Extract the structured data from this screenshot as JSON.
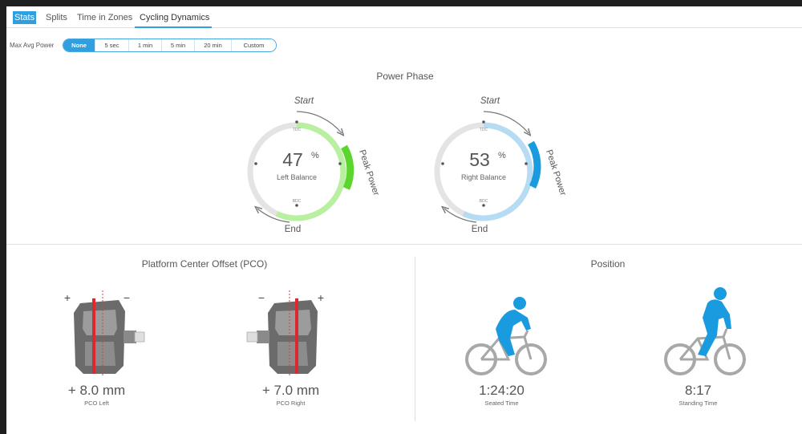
{
  "tabs": [
    {
      "label": "Stats"
    },
    {
      "label": "Splits"
    },
    {
      "label": "Time in Zones"
    },
    {
      "label": "Cycling Dynamics"
    }
  ],
  "max_avg_power": {
    "label": "Max Avg Power",
    "options": [
      "None",
      "5 sec",
      "1 min",
      "5 min",
      "20 min",
      "Custom"
    ],
    "selected": "None"
  },
  "power_phase": {
    "title": "Power Phase",
    "left": {
      "value": "47",
      "unit": "%",
      "label": "Left Balance",
      "color": "#5cd62f",
      "light_color": "#b9f0a0"
    },
    "right": {
      "value": "53",
      "unit": "%",
      "label": "Right Balance",
      "color": "#1a9be0",
      "light_color": "#b5dcf3"
    },
    "start_label": "Start",
    "end_label": "End",
    "peak_label": "Peak Power",
    "tdc_label": "TDC",
    "bdc_label": "BDC"
  },
  "pco": {
    "title": "Platform Center Offset (PCO)",
    "left": {
      "value": "+ 8.0 mm",
      "label": "PCO Left"
    },
    "right": {
      "value": "+ 7.0 mm",
      "label": "PCO Right"
    },
    "plus": "+",
    "minus": "−"
  },
  "position": {
    "title": "Position",
    "seated": {
      "value": "1:24:20",
      "label": "Seated Time"
    },
    "standing": {
      "value": "8:17",
      "label": "Standing Time"
    },
    "rider_color": "#1a9be0"
  }
}
